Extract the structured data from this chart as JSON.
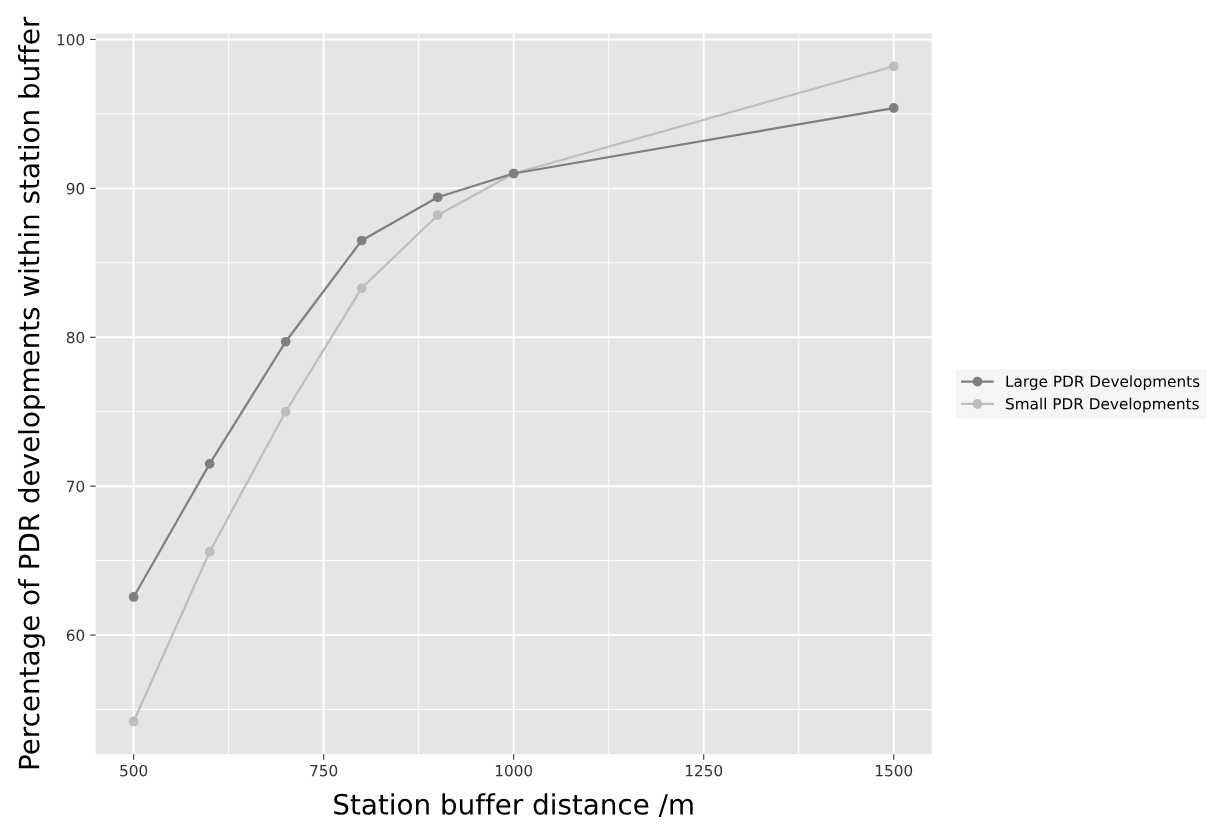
{
  "chart_data": {
    "type": "line",
    "xlabel": "Station buffer distance /m",
    "ylabel": "Percentage of PDR developments within station buffer",
    "x": [
      500,
      600,
      700,
      800,
      900,
      1000,
      1500
    ],
    "series": [
      {
        "name": "Large PDR Developments",
        "color": "#7f7f7f",
        "values": [
          62.56,
          71.5,
          79.7,
          86.5,
          89.4,
          91.0,
          95.4
        ]
      },
      {
        "name": "Small PDR Developments",
        "color": "#bdbdbd",
        "values": [
          54.2,
          65.6,
          75.0,
          83.3,
          88.2,
          91.0,
          98.2
        ]
      }
    ],
    "xlim": [
      450,
      1550
    ],
    "xticks": [
      500,
      750,
      1000,
      1250,
      1500
    ],
    "ylim": [
      52.0,
      100.4
    ],
    "yticks": [
      60,
      70,
      80,
      90,
      100
    ],
    "grid": true,
    "legend": "right",
    "marker": "circle",
    "line_style": "solid"
  }
}
